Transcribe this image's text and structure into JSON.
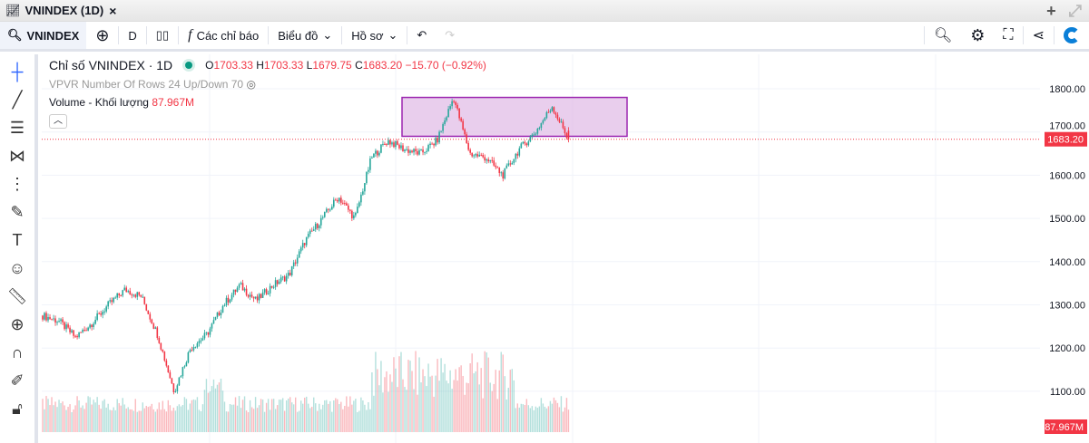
{
  "tab": {
    "title": "VNINDEX (1D)",
    "close": "×"
  },
  "window_icons": {
    "add": "+",
    "expand": "⤢"
  },
  "toolbar": {
    "symbol": "VNINDEX",
    "interval": "D",
    "indicators": "Các chỉ báo",
    "chart": "Biểu đồ",
    "profile": "Hồ sơ"
  },
  "legend": {
    "title": "Chỉ số VNINDEX · 1D",
    "o_label": "O",
    "o": "1703.33",
    "h_label": "H",
    "h": "1703.33",
    "l_label": "L",
    "l": "1679.75",
    "c_label": "C",
    "c": "1683.20",
    "change": "−15.70 (−0.92%)",
    "vpvr": "VPVR Number Of Rows 24 Up/Down 70",
    "volume_label": "Volume - Khối lượng",
    "volume_value": "87.967M"
  },
  "colors": {
    "up": "#26a69a",
    "down": "#f23645",
    "box_fill": "#e1bee7",
    "box_border": "#9c27b0"
  },
  "chart_data": {
    "type": "candlestick",
    "ylim": [
      1050,
      1830
    ],
    "yticks": [
      1100,
      1200,
      1300,
      1400,
      1500,
      1600,
      1700,
      1800
    ],
    "ytick_labels": [
      "1100.00",
      "1200.00",
      "1300.00",
      "1400.00",
      "1500.00",
      "1600.00",
      "1700.00",
      "1800.00"
    ],
    "last_price": "1683.20",
    "last_volume": "87.967M",
    "approx_close_path": [
      1275,
      1262,
      1225,
      1258,
      1300,
      1335,
      1320,
      1230,
      1100,
      1200,
      1232,
      1300,
      1345,
      1310,
      1345,
      1370,
      1450,
      1500,
      1550,
      1500,
      1640,
      1680,
      1660,
      1650,
      1680,
      1780,
      1650,
      1640,
      1600,
      1660,
      1700,
      1760,
      1683
    ],
    "highlight_box": {
      "price_from": 1690,
      "price_to": 1780
    }
  }
}
